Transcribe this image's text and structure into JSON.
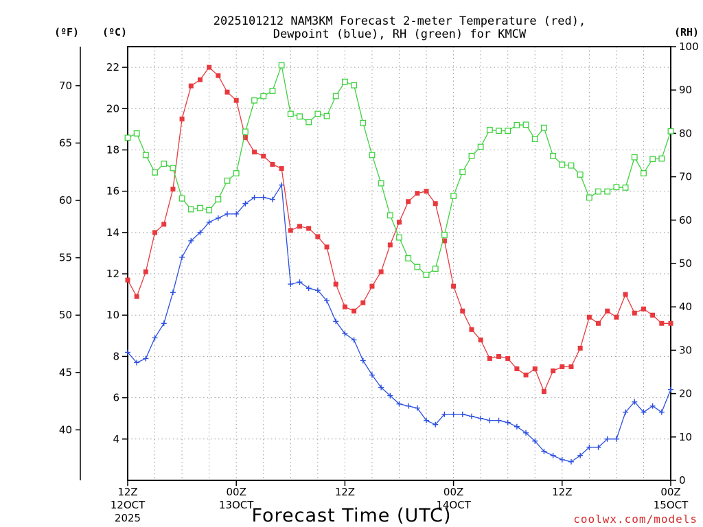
{
  "chart_data": {
    "type": "line",
    "title_line1": "2025101212 NAM3KM Forecast 2-meter Temperature (red),",
    "title_line2": "Dewpoint (blue), RH (green) for KMCW",
    "unit_f": "(ºF)",
    "unit_c": "(ºC)",
    "unit_rh": "(RH)",
    "xlabel": "Forecast Time (UTC)",
    "credit": "coolwx.com/models",
    "xlim": [
      0,
      60
    ],
    "ylim_c": [
      2,
      23
    ],
    "ylim_rh": [
      0,
      100
    ],
    "c_ticks": [
      "4",
      "6",
      "8",
      "10",
      "12",
      "14",
      "16",
      "18",
      "20",
      "22"
    ],
    "f_ticks": [
      "40",
      "45",
      "50",
      "55",
      "60",
      "65",
      "70"
    ],
    "rh_ticks": [
      "0",
      "10",
      "20",
      "30",
      "40",
      "50",
      "60",
      "70",
      "80",
      "90",
      "100"
    ],
    "x_ticks": [
      {
        "hour": 0,
        "line1": "12Z",
        "line2": "12OCT",
        "line3": "2025"
      },
      {
        "hour": 12,
        "line1": "00Z",
        "line2": "13OCT",
        "line3": ""
      },
      {
        "hour": 24,
        "line1": "12Z",
        "line2": "",
        "line3": ""
      },
      {
        "hour": 36,
        "line1": "00Z",
        "line2": "14OCT",
        "line3": ""
      },
      {
        "hour": 48,
        "line1": "12Z",
        "line2": "",
        "line3": ""
      },
      {
        "hour": 60,
        "line1": "00Z",
        "line2": "15OCT",
        "line3": ""
      }
    ],
    "series": [
      {
        "name": "2-meter Temperature",
        "units": "C",
        "color": "#e8393e",
        "marker": "filled-square",
        "values": [
          11.7,
          10.9,
          12.1,
          14.0,
          14.4,
          16.1,
          19.5,
          21.1,
          21.4,
          22.0,
          21.6,
          20.8,
          20.4,
          18.6,
          17.9,
          17.7,
          17.3,
          17.1,
          14.1,
          14.3,
          14.2,
          13.8,
          13.3,
          11.5,
          10.4,
          10.2,
          10.6,
          11.4,
          12.1,
          13.4,
          14.5,
          15.5,
          15.9,
          16.0,
          15.4,
          13.6,
          11.4,
          10.2,
          9.3,
          8.8,
          7.9,
          8.0,
          7.9,
          7.4,
          7.1,
          7.4,
          6.3,
          7.3,
          7.5,
          7.5,
          8.4,
          9.9,
          9.6,
          10.2,
          9.9,
          11.0,
          10.1,
          10.3,
          10.0,
          9.6,
          9.6
        ]
      },
      {
        "name": "Dewpoint",
        "units": "C",
        "color": "#2b4fe0",
        "marker": "plus",
        "values": [
          8.2,
          7.7,
          7.9,
          8.9,
          9.6,
          11.1,
          12.8,
          13.6,
          14.0,
          14.5,
          14.7,
          14.9,
          14.9,
          15.4,
          15.7,
          15.7,
          15.6,
          16.3,
          11.5,
          11.6,
          11.3,
          11.2,
          10.7,
          9.7,
          9.1,
          8.8,
          7.8,
          7.1,
          6.5,
          6.1,
          5.7,
          5.6,
          5.5,
          4.9,
          4.7,
          5.2,
          5.2,
          5.2,
          5.1,
          5.0,
          4.9,
          4.9,
          4.8,
          4.6,
          4.3,
          3.9,
          3.4,
          3.2,
          3.0,
          2.9,
          3.2,
          3.6,
          3.6,
          4.0,
          4.0,
          5.3,
          5.8,
          5.3,
          5.6,
          5.3,
          6.4
        ]
      },
      {
        "name": "RH",
        "units": "%",
        "color": "#3fd13f",
        "marker": "open-square",
        "values": [
          79,
          80,
          75,
          71,
          73,
          72,
          65,
          62.5,
          62.8,
          62.3,
          64.8,
          69.1,
          70.8,
          80.4,
          87.6,
          88.6,
          89.8,
          95.7,
          84.5,
          83.9,
          82.6,
          84.5,
          84.0,
          88.6,
          91.9,
          91.1,
          82.4,
          75.0,
          68.5,
          61.1,
          56.0,
          51.2,
          49.2,
          47.4,
          48.8,
          56.6,
          65.6,
          71.1,
          74.8,
          76.9,
          80.8,
          80.6,
          80.6,
          81.9,
          82.0,
          78.7,
          81.3,
          74.8,
          72.8,
          72.6,
          70.5,
          65.2,
          66.6,
          66.6,
          67.6,
          67.5,
          74.5,
          70.8,
          74.1,
          74.2,
          80.5
        ]
      }
    ]
  }
}
